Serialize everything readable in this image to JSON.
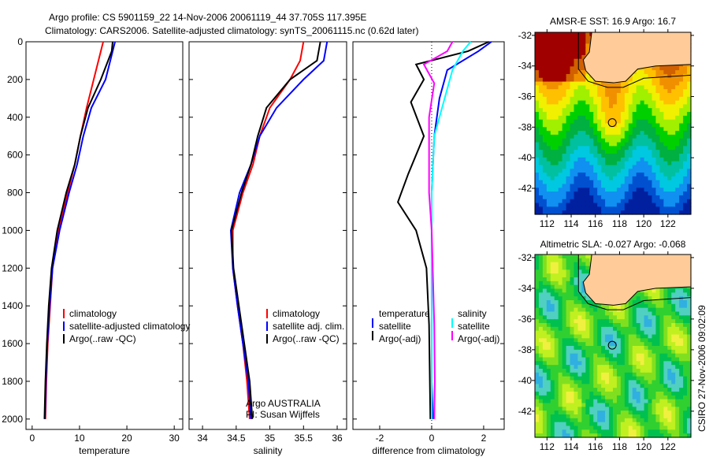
{
  "title_line1": "Argo profile: CS 5901159_22 14-Nov-2006 20061119_44 37.705S 117.395E",
  "title_line2": "Climatology: CARS2006. Satellite-adjusted climatology: synTS_20061115.nc (0.62d later)",
  "footer": "CSIRO 27-Nov-2006 09:02:09",
  "colors": {
    "clim": "#ff0000",
    "sat": "#0000ff",
    "argo": "#000000",
    "sal_sat": "#00ffff",
    "sal_argo": "#ff00ff",
    "land": "#ffcc99"
  },
  "chart_data": [
    {
      "type": "line",
      "xlabel": "temperature",
      "xlim": [
        -1.3,
        31.8
      ],
      "ylim": [
        0,
        2055
      ],
      "xticks": [
        "0",
        "10",
        "20",
        "30"
      ],
      "xtickvals": [
        0,
        10,
        20,
        30
      ],
      "yticks": [
        "0",
        "200",
        "400",
        "600",
        "800",
        "1000",
        "1200",
        "1400",
        "1600",
        "1800",
        "2000"
      ],
      "legend": [
        "climatology",
        "satellite-adjusted climatology",
        "Argo(..raw -QC)"
      ],
      "notes": [],
      "series": [
        {
          "name": "climatology",
          "color": "#ff0000",
          "x": [
            15,
            14.5,
            13,
            11.5,
            10.2,
            9,
            7.5,
            5.6,
            4.3,
            3.8,
            3.3,
            3,
            2.8
          ],
          "y": [
            0,
            50,
            200,
            350,
            500,
            650,
            800,
            1000,
            1200,
            1400,
            1600,
            1800,
            2000
          ]
        },
        {
          "name": "satellite",
          "color": "#0000ff",
          "x": [
            17.5,
            17,
            15.5,
            12.5,
            10.8,
            9.5,
            7.8,
            5.8,
            4.3,
            3.7,
            3.2,
            2.9,
            2.7
          ],
          "y": [
            0,
            50,
            200,
            350,
            500,
            650,
            800,
            1000,
            1200,
            1400,
            1600,
            1800,
            2000
          ]
        },
        {
          "name": "argo",
          "color": "#000000",
          "x": [
            17,
            16.8,
            14.5,
            11.8,
            10.2,
            9,
            7.2,
            5.3,
            4.1,
            3.5,
            3.1,
            2.8,
            2.6
          ],
          "y": [
            0,
            50,
            200,
            350,
            500,
            650,
            800,
            1000,
            1200,
            1400,
            1600,
            1800,
            2000
          ]
        }
      ]
    },
    {
      "type": "line",
      "xlabel": "salinity",
      "xlim": [
        33.8,
        36.14
      ],
      "ylim": [
        0,
        2055
      ],
      "xticks": [
        "34",
        "34.5",
        "35",
        "35.5",
        "36"
      ],
      "xtickvals": [
        34,
        34.5,
        35,
        35.5,
        36
      ],
      "yticks": [],
      "legend": [
        "climatology",
        "satellite adj. clim.",
        "Argo(..raw -QC)"
      ],
      "notes": [
        "Argo AUSTRALIA",
        "PI: Susan Wijffels"
      ],
      "series": [
        {
          "name": "climatology",
          "color": "#ff0000",
          "x": [
            35.5,
            35.45,
            35.3,
            35,
            34.85,
            34.75,
            34.6,
            34.45,
            34.45,
            34.52,
            34.6,
            34.66,
            34.7
          ],
          "y": [
            0,
            100,
            200,
            350,
            500,
            650,
            800,
            1000,
            1200,
            1400,
            1600,
            1800,
            2000
          ]
        },
        {
          "name": "satellite",
          "color": "#0000ff",
          "x": [
            35.85,
            35.8,
            35.5,
            35.1,
            34.85,
            34.72,
            34.55,
            34.42,
            34.45,
            34.52,
            34.6,
            34.68,
            34.72
          ],
          "y": [
            0,
            100,
            200,
            350,
            500,
            650,
            800,
            1000,
            1200,
            1400,
            1600,
            1800,
            2000
          ]
        },
        {
          "name": "argo",
          "color": "#000000",
          "x": [
            35.75,
            35.7,
            35.3,
            34.95,
            34.82,
            34.72,
            34.58,
            34.43,
            34.46,
            34.54,
            34.62,
            34.7,
            34.74
          ],
          "y": [
            0,
            100,
            200,
            350,
            500,
            650,
            800,
            1000,
            1200,
            1400,
            1600,
            1800,
            2000
          ]
        }
      ]
    },
    {
      "type": "line",
      "xlabel": "difference from climatology",
      "xlim": [
        -3.03,
        2.79
      ],
      "ylim": [
        0,
        2055
      ],
      "xticks": [
        "-2",
        "0",
        "2"
      ],
      "xtickvals": [
        -2,
        0,
        2
      ],
      "yticks": [],
      "legend_temp": [
        "temperature",
        "satellite",
        "Argo(-adj)"
      ],
      "legend_sal": [
        "salinity",
        "satellite",
        "Argo(-adj)"
      ],
      "notes": [],
      "series": [
        {
          "name": "temperature satellite",
          "color": "#0000ff",
          "x": [
            2.3,
            1.8,
            0.6,
            0.3,
            0.1,
            0,
            0,
            0,
            0,
            0.05
          ],
          "y": [
            0,
            50,
            150,
            300,
            500,
            800,
            1000,
            1400,
            1800,
            2000
          ]
        },
        {
          "name": "temperature argo",
          "color": "#000000",
          "x": [
            2.2,
            1.4,
            -0.6,
            -0.3,
            -0.8,
            -0.3,
            -0.9,
            -1.3,
            -0.6,
            -0.2,
            -0.1,
            -0.05
          ],
          "y": [
            0,
            50,
            120,
            200,
            320,
            500,
            700,
            850,
            1000,
            1200,
            1500,
            2000
          ]
        },
        {
          "name": "salinity satellite",
          "color": "#00ffff",
          "x": [
            1.5,
            1.2,
            0.8,
            0.5,
            0.1,
            0,
            0,
            0,
            0
          ],
          "y": [
            0,
            50,
            150,
            300,
            500,
            800,
            1200,
            1600,
            2000
          ]
        },
        {
          "name": "salinity argo",
          "color": "#ff00ff",
          "x": [
            0.8,
            0.6,
            -0.3,
            0.1,
            -0.1,
            -0.1,
            0,
            0.1,
            0.12,
            0.1
          ],
          "y": [
            0,
            50,
            120,
            220,
            400,
            800,
            1000,
            1500,
            1800,
            2000
          ]
        }
      ]
    }
  ],
  "maps": [
    {
      "title": "AMSR-E SST: 16.9 Argo: 16.7",
      "kind": "sst",
      "lonticks": [
        "112",
        "114",
        "116",
        "118",
        "120",
        "122"
      ],
      "latticks": [
        "-32",
        "-34",
        "-36",
        "-38",
        "-40",
        "-42"
      ]
    },
    {
      "title": "Altimetric SLA: -0.027 Argo: -0.068",
      "kind": "sla",
      "lonticks": [
        "112",
        "114",
        "116",
        "118",
        "120",
        "122"
      ],
      "latticks": [
        "-32",
        "-34",
        "-36",
        "-38",
        "-40",
        "-42"
      ]
    }
  ],
  "profile_location": {
    "lon": 117.395,
    "lat": -37.705
  }
}
